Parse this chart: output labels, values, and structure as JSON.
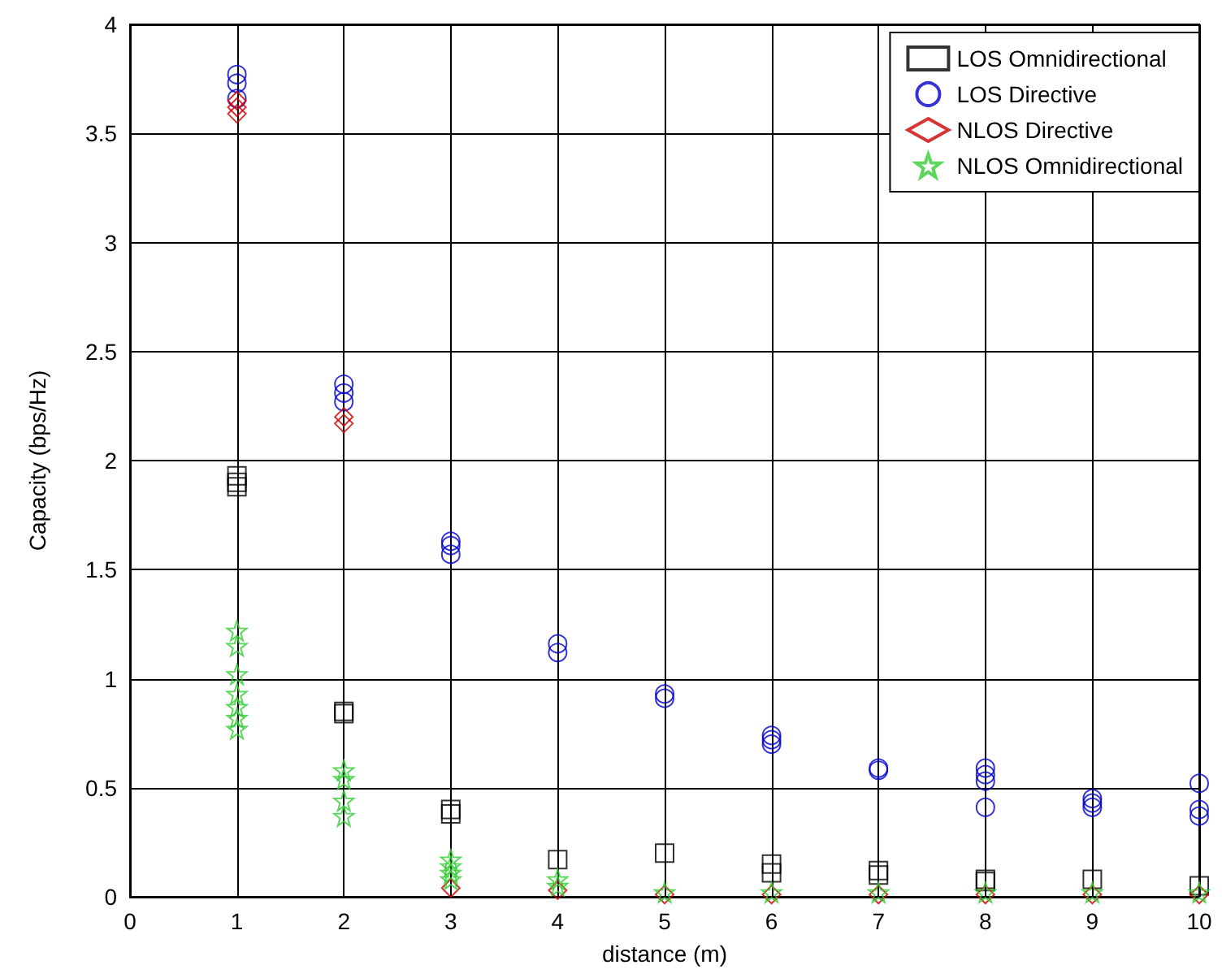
{
  "chart_data": {
    "type": "scatter",
    "xlabel": "distance (m)",
    "ylabel": "Capacity (bps/Hz)",
    "xlim": [
      0,
      10
    ],
    "xticks": [
      0,
      1,
      2,
      3,
      4,
      5,
      6,
      7,
      8,
      9,
      10
    ],
    "ylim": [
      0,
      4
    ],
    "yticks": [
      0,
      0.5,
      1,
      1.5,
      2,
      2.5,
      3,
      3.5,
      4
    ],
    "grid": true,
    "legend": "top right",
    "series": [
      {
        "name": "LOS Omnidirectional",
        "color": "#000000",
        "marker": "square",
        "x": [
          1,
          1,
          1,
          2,
          2,
          3,
          3,
          4,
          5,
          6,
          6,
          7,
          7,
          8,
          8,
          9,
          10
        ],
        "values": [
          1.93,
          1.9,
          1.88,
          0.85,
          0.84,
          0.4,
          0.38,
          0.17,
          0.2,
          0.15,
          0.11,
          0.12,
          0.1,
          0.08,
          0.07,
          0.08,
          0.05
        ]
      },
      {
        "name": "LOS Directive",
        "color": "#0000cc",
        "marker": "circle",
        "x": [
          1,
          1,
          1,
          2,
          2,
          2,
          3,
          3,
          3,
          4,
          4,
          5,
          5,
          6,
          6,
          6,
          7,
          7,
          8,
          8,
          8,
          8,
          9,
          9,
          9,
          10,
          10,
          10
        ],
        "values": [
          3.77,
          3.73,
          3.66,
          2.35,
          2.31,
          2.27,
          1.63,
          1.61,
          1.57,
          1.16,
          1.12,
          0.93,
          0.91,
          0.74,
          0.72,
          0.7,
          0.59,
          0.58,
          0.59,
          0.56,
          0.53,
          0.41,
          0.45,
          0.43,
          0.41,
          0.52,
          0.4,
          0.37
        ]
      },
      {
        "name": "NLOS Directive",
        "color": "#cc0000",
        "marker": "diamond",
        "x": [
          1,
          1,
          1,
          2,
          2,
          3,
          4,
          5,
          6,
          7,
          8,
          9,
          10
        ],
        "values": [
          3.65,
          3.62,
          3.59,
          2.2,
          2.17,
          0.04,
          0.03,
          0.01,
          0.01,
          0.01,
          0.01,
          0.01,
          0.01
        ]
      },
      {
        "name": "NLOS Omnidirectional",
        "color": "#33cc33",
        "marker": "star",
        "x": [
          1,
          1,
          1,
          1,
          1,
          1,
          1,
          2,
          2,
          2,
          2,
          3,
          3,
          3,
          3,
          4,
          4,
          5,
          6,
          7,
          8,
          9,
          10
        ],
        "values": [
          1.22,
          1.15,
          1.02,
          0.93,
          0.87,
          0.82,
          0.77,
          0.58,
          0.54,
          0.44,
          0.37,
          0.17,
          0.14,
          0.11,
          0.08,
          0.08,
          0.05,
          0.02,
          0.02,
          0.02,
          0.02,
          0.02,
          0.02
        ]
      }
    ]
  }
}
